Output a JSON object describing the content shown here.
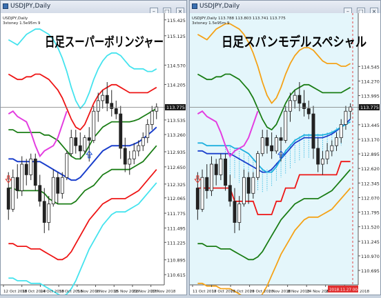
{
  "windows": {
    "left": {
      "title": "USDJPY,Daily",
      "minimize": "–",
      "maximize": "□",
      "close": "×"
    },
    "right": {
      "title": "USDJPY,Daily",
      "minimize": "–",
      "maximize": "□",
      "close": "×"
    }
  },
  "colors": {
    "bg_left": "#ffffff",
    "bg_right": "#e4f6fb",
    "candle": "#222222",
    "sigma3": "#44e3ee",
    "sigma2": "#ee1515",
    "sigma1": "#1a7d15",
    "mid": "#1a3fcc",
    "lagging": "#e33de0",
    "span_line": "#1fb0df",
    "orange_band": "#f5a216",
    "signal_up": "#1a4fd4",
    "signal_down": "#e0342a"
  },
  "chart_data": [
    {
      "type": "candlestick",
      "name": "USDJPY Daily — Super Bollinger",
      "title": "日足スーパーボリンジャー",
      "info_line1": "USDJPY,Daily",
      "info_line2": "3stoney 1.5e95m 9",
      "ylim": [
        110.5,
        115.5
      ],
      "y_ticks": [
        "115.425",
        "115.125",
        "114.570",
        "114.205",
        "113.775",
        "113.535",
        "113.260",
        "112.935",
        "112.650",
        "112.325",
        "112.065",
        "111.775",
        "111.495",
        "111.225",
        "110.895",
        "110.615"
      ],
      "current_price": "113.775",
      "x_labels": [
        "12 Oct 2018",
        "18 Oct 2018",
        "24 Oct 2018",
        "30 Oct 2018",
        "5 Nov 2018",
        "9 Nov 2018",
        "15 Nov 2018",
        "21 Nov 2018",
        "27 Nov 2018"
      ],
      "candles": [
        [
          112.25,
          112.55,
          111.65,
          111.85
        ],
        [
          111.85,
          112.6,
          111.8,
          112.45
        ],
        [
          112.45,
          112.7,
          112.05,
          112.2
        ],
        [
          112.2,
          112.85,
          112.1,
          112.7
        ],
        [
          112.7,
          112.8,
          112.3,
          112.5
        ],
        [
          112.5,
          112.9,
          112.4,
          112.8
        ],
        [
          112.8,
          112.9,
          112.2,
          112.3
        ],
        [
          112.3,
          112.5,
          111.9,
          112.0
        ],
        [
          112.0,
          112.25,
          111.4,
          111.6
        ],
        [
          111.6,
          112.1,
          111.45,
          111.95
        ],
        [
          111.95,
          112.6,
          111.9,
          112.45
        ],
        [
          112.45,
          112.55,
          111.95,
          112.15
        ],
        [
          112.15,
          112.55,
          112.05,
          112.45
        ],
        [
          112.45,
          112.95,
          112.4,
          112.9
        ],
        [
          112.9,
          113.35,
          112.85,
          113.2
        ],
        [
          113.2,
          113.35,
          112.9,
          113.05
        ],
        [
          113.05,
          113.3,
          112.8,
          112.95
        ],
        [
          112.95,
          113.25,
          112.9,
          113.2
        ],
        [
          113.2,
          113.4,
          112.75,
          113.15
        ],
        [
          113.15,
          113.8,
          113.1,
          113.7
        ],
        [
          113.7,
          114.05,
          113.5,
          113.9
        ],
        [
          113.9,
          114.1,
          113.75,
          114.0
        ],
        [
          114.0,
          114.25,
          113.7,
          113.85
        ],
        [
          113.85,
          114.1,
          113.6,
          113.75
        ],
        [
          113.75,
          113.9,
          113.55,
          113.65
        ],
        [
          113.65,
          113.8,
          112.8,
          113.0
        ],
        [
          113.0,
          113.2,
          112.55,
          112.7
        ],
        [
          112.7,
          112.95,
          112.5,
          112.8
        ],
        [
          112.8,
          113.1,
          112.7,
          112.95
        ],
        [
          112.95,
          113.15,
          112.85,
          113.05
        ],
        [
          113.05,
          113.3,
          112.95,
          113.2
        ],
        [
          113.2,
          113.55,
          113.1,
          113.45
        ],
        [
          113.45,
          113.8,
          113.35,
          113.7
        ],
        [
          113.7,
          113.85,
          113.55,
          113.78
        ]
      ],
      "series": [
        {
          "name": "+3σ",
          "role": "sigma3",
          "values": [
            null,
            null,
            null,
            null,
            null,
            null,
            null,
            null,
            null,
            null,
            null,
            null,
            null,
            null,
            null,
            null,
            114.1,
            113.8,
            113.9,
            114.3,
            114.6,
            114.75,
            114.9,
            114.95,
            114.85,
            114.75,
            114.6,
            114.55,
            114.6,
            114.6,
            114.55,
            114.5,
            114.45,
            114.5
          ]
        },
        {
          "name": "+2σ",
          "role": "sigma2",
          "values": [
            null,
            null,
            null,
            null,
            null,
            null,
            null,
            null,
            null,
            null,
            null,
            null,
            null,
            null,
            null,
            null,
            113.65,
            113.45,
            113.55,
            113.8,
            114.05,
            114.2,
            114.3,
            114.35,
            114.35,
            114.3,
            114.2,
            114.15,
            114.15,
            114.15,
            114.15,
            114.1,
            114.1,
            114.15
          ]
        },
        {
          "name": "+1σ",
          "role": "sigma1",
          "values": [
            null,
            null,
            null,
            null,
            null,
            null,
            null,
            null,
            null,
            null,
            null,
            null,
            null,
            null,
            null,
            null,
            113.2,
            113.15,
            113.25,
            113.4,
            113.55,
            113.65,
            113.7,
            113.75,
            113.75,
            113.75,
            113.7,
            113.68,
            113.68,
            113.7,
            113.72,
            113.72,
            113.74,
            113.76
          ]
        },
        {
          "name": "Middle",
          "role": "mid",
          "values": [
            null,
            null,
            null,
            null,
            null,
            null,
            null,
            null,
            null,
            null,
            null,
            null,
            null,
            null,
            null,
            null,
            112.55,
            112.6,
            112.65,
            112.75,
            112.85,
            112.95,
            113.0,
            113.05,
            113.05,
            113.05,
            113.05,
            113.05,
            113.1,
            113.15,
            113.2,
            113.25,
            113.3,
            113.35
          ]
        },
        {
          "name": "-1σ",
          "role": "sigma1",
          "values": [
            null,
            null,
            null,
            null,
            null,
            null,
            null,
            null,
            null,
            null,
            null,
            null,
            null,
            null,
            null,
            null,
            111.95,
            112.0,
            112.05,
            112.15,
            112.25,
            112.35,
            112.4,
            112.45,
            112.5,
            112.5,
            112.45,
            112.5,
            112.55,
            112.6,
            112.65,
            112.7,
            112.75,
            112.8
          ]
        },
        {
          "name": "-2σ",
          "role": "sigma2",
          "values": [
            null,
            null,
            null,
            null,
            null,
            null,
            null,
            null,
            null,
            null,
            null,
            null,
            null,
            null,
            null,
            null,
            111.45,
            111.45,
            111.45,
            111.55,
            111.65,
            111.75,
            111.8,
            111.85,
            111.9,
            111.95,
            111.95,
            112.0,
            112.05,
            112.1,
            112.15,
            112.2,
            112.25,
            112.3
          ]
        },
        {
          "name": "-3σ",
          "role": "sigma3",
          "values": [
            null,
            null,
            null,
            null,
            null,
            null,
            null,
            null,
            null,
            null,
            null,
            null,
            null,
            null,
            null,
            null,
            110.95,
            110.9,
            110.85,
            110.95,
            111.1,
            111.2,
            111.3,
            111.35,
            111.4,
            111.45,
            111.5,
            111.55,
            111.6,
            111.65,
            111.7,
            111.75,
            111.8,
            111.85
          ]
        }
      ],
      "bands_full": {
        "sigma3_upper": [
          115.05,
          115.0,
          114.95,
          115.05,
          115.15,
          115.2,
          115.25,
          115.25,
          115.2,
          115.15,
          115.05,
          114.9,
          114.7,
          114.45,
          114.15,
          113.9,
          113.75,
          113.85,
          114.05,
          114.3,
          114.5,
          114.65,
          114.75,
          114.8,
          114.8,
          114.75,
          114.65,
          114.55,
          114.5,
          114.5,
          114.5,
          114.45,
          114.45,
          114.5
        ],
        "sigma2_upper": [
          114.4,
          114.35,
          114.3,
          114.3,
          114.35,
          114.35,
          114.4,
          114.4,
          114.35,
          114.3,
          114.2,
          114.1,
          113.95,
          113.75,
          113.55,
          113.4,
          113.35,
          113.45,
          113.65,
          113.85,
          114.0,
          114.1,
          114.15,
          114.2,
          114.2,
          114.15,
          114.1,
          114.05,
          114.05,
          114.05,
          114.05,
          114.05,
          114.1,
          114.15
        ],
        "sigma1_upper": [
          113.35,
          113.35,
          113.3,
          113.3,
          113.3,
          113.3,
          113.3,
          113.3,
          113.25,
          113.25,
          113.2,
          113.15,
          113.05,
          112.95,
          112.85,
          112.8,
          112.8,
          112.9,
          113.05,
          113.2,
          113.3,
          113.4,
          113.45,
          113.5,
          113.5,
          113.5,
          113.5,
          113.5,
          113.52,
          113.55,
          113.6,
          113.65,
          113.7,
          113.75
        ],
        "mid": [
          112.8,
          112.8,
          112.75,
          112.75,
          112.75,
          112.75,
          112.75,
          112.75,
          112.7,
          112.65,
          112.6,
          112.55,
          112.5,
          112.45,
          112.4,
          112.4,
          112.45,
          112.55,
          112.65,
          112.75,
          112.85,
          112.95,
          113.0,
          113.05,
          113.05,
          113.05,
          113.05,
          113.05,
          113.08,
          113.12,
          113.18,
          113.25,
          113.32,
          113.4
        ],
        "sigma1_lower": [
          112.25,
          112.25,
          112.2,
          112.2,
          112.2,
          112.2,
          112.2,
          112.2,
          112.15,
          112.05,
          112.0,
          111.95,
          111.95,
          111.95,
          111.95,
          112.0,
          112.1,
          112.2,
          112.25,
          112.3,
          112.4,
          112.5,
          112.55,
          112.6,
          112.6,
          112.6,
          112.6,
          112.6,
          112.65,
          112.7,
          112.75,
          112.85,
          112.95,
          113.05
        ],
        "sigma2_lower": [
          111.2,
          111.2,
          111.15,
          111.15,
          111.15,
          111.1,
          111.1,
          111.1,
          111.05,
          111.0,
          110.95,
          110.9,
          110.9,
          110.95,
          111.05,
          111.2,
          111.35,
          111.5,
          111.65,
          111.75,
          111.85,
          111.95,
          112.0,
          112.05,
          112.05,
          112.05,
          112.05,
          112.1,
          112.15,
          112.2,
          112.3,
          112.4,
          112.5,
          112.6
        ],
        "sigma3_lower": [
          110.55,
          110.55,
          110.5,
          110.5,
          110.5,
          110.45,
          110.45,
          110.45,
          110.4,
          110.35,
          110.3,
          110.25,
          110.2,
          110.25,
          110.35,
          110.5,
          110.7,
          110.9,
          111.1,
          111.25,
          111.4,
          111.55,
          111.65,
          111.75,
          111.8,
          111.8,
          111.8,
          111.85,
          111.9,
          111.95,
          112.05,
          112.15,
          112.25,
          112.35
        ]
      },
      "lagging_span": [
        113.65,
        113.7,
        113.6,
        113.55,
        113.5,
        113.3,
        113.05,
        112.85,
        112.95,
        113.0,
        113.05,
        113.2,
        113.45,
        113.7
      ],
      "signals": [
        {
          "index": 0,
          "kind": "down",
          "price": 112.35
        },
        {
          "index": 18,
          "kind": "up",
          "price": 112.95
        }
      ]
    },
    {
      "type": "candlestick",
      "name": "USDJPY Daily — Super Span Model",
      "title": "日足スパンモデルスペシャル",
      "info_line1": "USDJPY,Daily  113.788 113.803 113.741 113.775",
      "info_line2": "3stoney 1.5e95m 9",
      "ylim": [
        110.5,
        115.5
      ],
      "y_ticks": [
        "114.545",
        "114.270",
        "113.995",
        "113.775",
        "113.445",
        "113.170",
        "112.895",
        "112.620",
        "112.345",
        "112.070",
        "111.795",
        "111.520",
        "111.245",
        "110.970",
        "110.695"
      ],
      "current_price": "113.775",
      "current_date": "2018.11.27 00:00",
      "x_labels": [
        "11 Oct 2018",
        "17 Oct 2018",
        "23 Oct 2018",
        "29 Oct 2018",
        "2 Nov 2018",
        "8 Nov 2018",
        "14 Nov 2018",
        "20 Nov 2018",
        "26 Nov 2018"
      ]
    }
  ]
}
